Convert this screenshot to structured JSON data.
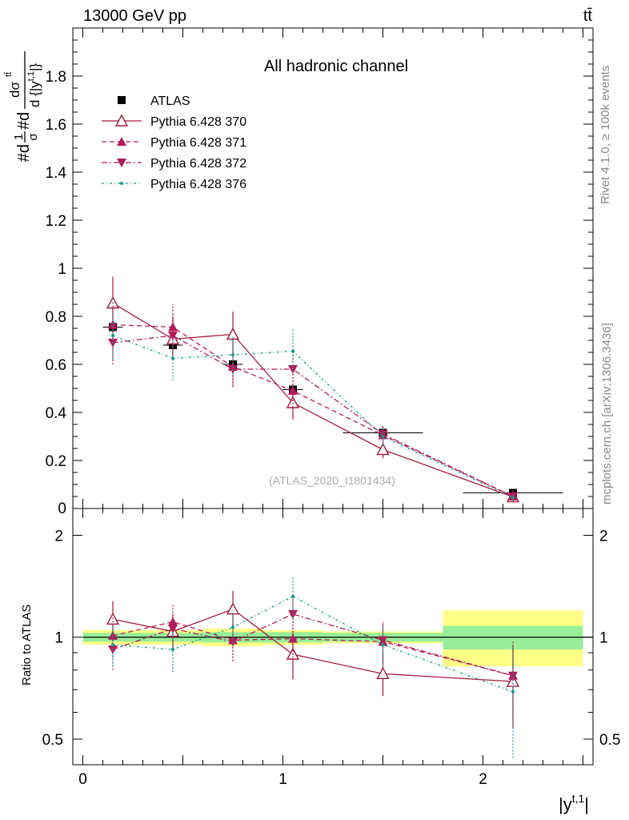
{
  "header": {
    "energy_label": "13000 GeV pp",
    "process_label": "tt̄"
  },
  "side": {
    "rivet_label": "Rivet 4.1.0, ≥ 100k events",
    "source_label": "mcplots.cern.ch [arXiv:1306.3436]"
  },
  "chart_data": [
    {
      "type": "line",
      "title": "All hadronic channel",
      "watermark": "(ATLAS_2020_I1801434)",
      "ylabel": "#d 1/σ #d dσ^{tt̄}/d{|y^{t,1}|}",
      "ylabel_parts": {
        "prefix": "#d",
        "frac_top": "1",
        "frac_bottom": "σ",
        "mid": "#d",
        "num": "dσ",
        "num_sup": "tt̄",
        "den": "d {|y",
        "den_sup": "t,1",
        "den_end": "|}"
      },
      "ylim": [
        0,
        2.0
      ],
      "xlim": [
        -0.05,
        2.55
      ],
      "y_ticks": [
        0.2,
        0.4,
        0.6,
        0.8,
        1,
        1.2,
        1.4,
        1.6,
        1.8
      ],
      "y_tick_labels": [
        "0.2",
        "0.4",
        "0.6",
        "0.8",
        "1",
        "1.2",
        "1.4",
        "1.6",
        "1.8"
      ],
      "y_zero_label": "0",
      "x_bins": [
        [
          0,
          0.3
        ],
        [
          0.3,
          0.6
        ],
        [
          0.6,
          0.9
        ],
        [
          0.9,
          1.2
        ],
        [
          1.2,
          1.8
        ],
        [
          1.8,
          2.5
        ]
      ],
      "x_centers": [
        0.15,
        0.45,
        0.75,
        1.05,
        1.5,
        2.15
      ],
      "legend": {
        "position": "top-left",
        "entries": [
          "ATLAS",
          "Pythia 6.428 370",
          "Pythia 6.428 371",
          "Pythia 6.428 372",
          "Pythia 6.428 376"
        ]
      },
      "series": [
        {
          "name": "ATLAS",
          "color": "#000000",
          "marker": "square",
          "values": [
            0.755,
            0.68,
            0.6,
            0.495,
            0.315,
            0.065
          ],
          "errors": [
            0.02,
            0.02,
            0.02,
            0.015,
            0.015,
            0.005
          ]
        },
        {
          "name": "Pythia 6.428 370",
          "color": "#a01c3a",
          "style": "solid",
          "marker": "triangle-open",
          "values": [
            0.855,
            0.705,
            0.725,
            0.44,
            0.245,
            0.048
          ],
          "errors": [
            0.11,
            0.09,
            0.095,
            0.07,
            0.035,
            0.012
          ]
        },
        {
          "name": "Pythia 6.428 371",
          "color": "#b01c5a",
          "style": "dashed",
          "marker": "triangle-up",
          "values": [
            0.765,
            0.755,
            0.59,
            0.49,
            0.305,
            0.05
          ],
          "errors": [
            0.1,
            0.095,
            0.08,
            0.07,
            0.04,
            0.012
          ]
        },
        {
          "name": "Pythia 6.428 372",
          "color": "#b01c5a",
          "style": "dashdot",
          "marker": "triangle-down",
          "values": [
            0.69,
            0.72,
            0.58,
            0.58,
            0.31,
            0.05
          ],
          "errors": [
            0.09,
            0.09,
            0.075,
            0.08,
            0.04,
            0.012
          ]
        },
        {
          "name": "Pythia 6.428 376",
          "color": "#1a9a8a",
          "style": "dotdash",
          "marker": "star",
          "values": [
            0.72,
            0.625,
            0.64,
            0.655,
            0.3,
            0.045
          ],
          "errors": [
            0.1,
            0.09,
            0.08,
            0.09,
            0.04,
            0.015
          ]
        }
      ]
    },
    {
      "type": "line",
      "ylabel": "Ratio to ATLAS",
      "xlabel": "|y^{t,1}|",
      "xlabel_parts": {
        "base": "|y",
        "sup": "t,1",
        "end": "|"
      },
      "scale": "log",
      "ylim": [
        0.42,
        2.4
      ],
      "xlim": [
        -0.05,
        2.55
      ],
      "y_ticks": [
        0.5,
        1,
        2
      ],
      "y_tick_labels": [
        "0.5",
        "1",
        "2"
      ],
      "x_ticks": [
        0,
        1,
        2
      ],
      "x_tick_labels": [
        "0",
        "1",
        "2"
      ],
      "bands": {
        "bins": [
          [
            0,
            0.6
          ],
          [
            0.6,
            0.9
          ],
          [
            0.9,
            1.2
          ],
          [
            1.2,
            1.8
          ],
          [
            1.8,
            2.5
          ]
        ],
        "inner_color": "#99ee99",
        "outer_color": "#ffff88",
        "inner": [
          [
            0.97,
            1.03
          ],
          [
            0.965,
            1.035
          ],
          [
            0.965,
            1.035
          ],
          [
            0.97,
            1.03
          ],
          [
            0.92,
            1.08
          ]
        ],
        "outer": [
          [
            0.95,
            1.05
          ],
          [
            0.94,
            1.06
          ],
          [
            0.95,
            1.05
          ],
          [
            0.96,
            1.04
          ],
          [
            0.82,
            1.2
          ]
        ]
      },
      "series": [
        {
          "name": "Pythia 6.428 370",
          "values": [
            1.13,
            1.04,
            1.21,
            0.89,
            0.78,
            0.74
          ],
          "errors": [
            0.15,
            0.13,
            0.16,
            0.14,
            0.11,
            0.2
          ]
        },
        {
          "name": "Pythia 6.428 371",
          "values": [
            1.01,
            1.11,
            0.98,
            0.99,
            0.97,
            0.77
          ],
          "errors": [
            0.14,
            0.14,
            0.13,
            0.14,
            0.13,
            0.2
          ]
        },
        {
          "name": "Pythia 6.428 372",
          "values": [
            0.92,
            1.06,
            0.97,
            1.17,
            0.98,
            0.77
          ],
          "errors": [
            0.12,
            0.13,
            0.12,
            0.16,
            0.13,
            0.2
          ]
        },
        {
          "name": "Pythia 6.428 376",
          "values": [
            0.95,
            0.92,
            1.07,
            1.32,
            0.95,
            0.69
          ],
          "errors": [
            0.13,
            0.13,
            0.13,
            0.18,
            0.13,
            0.25
          ]
        }
      ]
    }
  ]
}
